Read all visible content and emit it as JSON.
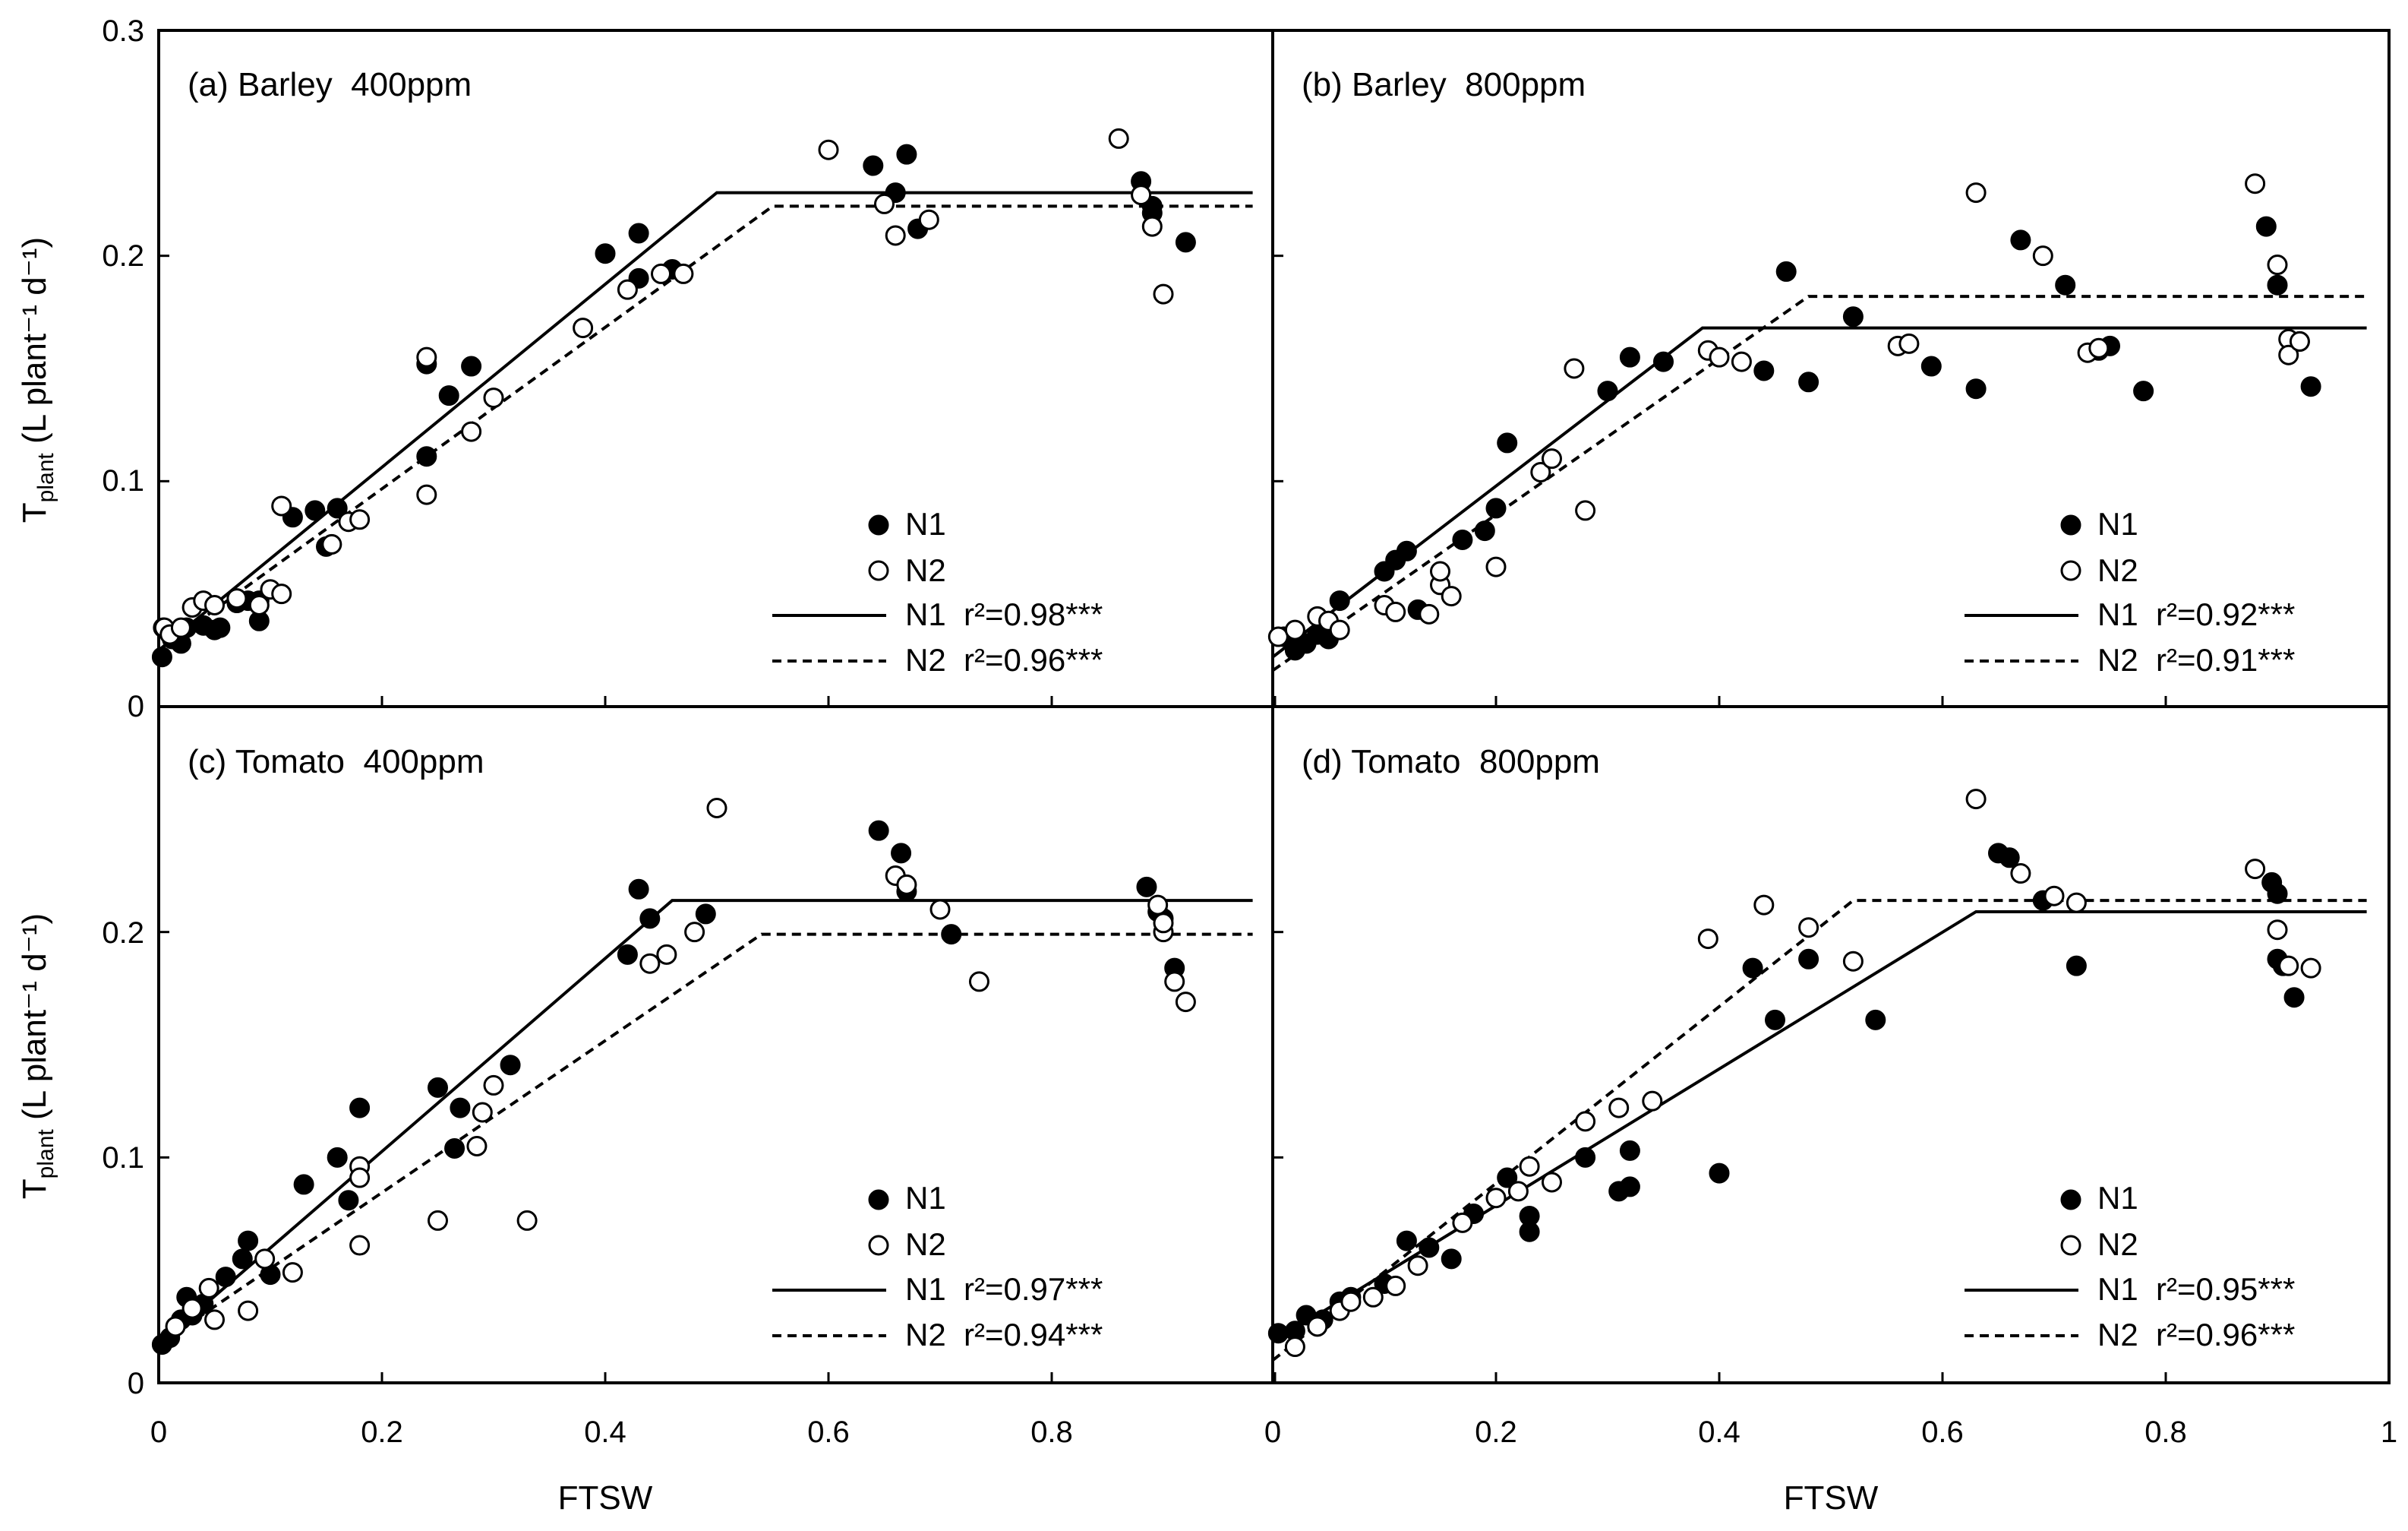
{
  "figure": {
    "xlabel": "FTSW",
    "ylabel_main": "T",
    "ylabel_sub": "plant",
    "ylabel_units": " (L plant⁻¹ d⁻¹)",
    "x_ticks_left": [
      "0",
      "0.2",
      "0.4",
      "0.6",
      "0.8"
    ],
    "x_ticks_right": [
      "0",
      "0.2",
      "0.4",
      "0.6",
      "0.8",
      "1"
    ],
    "y_ticks_top": [
      "0",
      "0.1",
      "0.2",
      "0.3"
    ],
    "y_ticks_bottom": [
      "0",
      "0.1",
      "0.2"
    ]
  },
  "chart_data": [
    {
      "type": "scatter",
      "title": "(a) Barley  400ppm",
      "xlabel": "",
      "ylabel": "Tplant (L plant-1 d-1)",
      "xlim": [
        0,
        1
      ],
      "ylim": [
        0,
        0.3
      ],
      "legend": "bottom-right",
      "series": [
        {
          "name": "N1",
          "marker": "filled",
          "x": [
            0.003,
            0.004,
            0.01,
            0.012,
            0.02,
            0.025,
            0.04,
            0.05,
            0.055,
            0.07,
            0.08,
            0.09,
            0.09,
            0.12,
            0.14,
            0.15,
            0.16,
            0.24,
            0.24,
            0.26,
            0.28,
            0.4,
            0.43,
            0.43,
            0.46,
            0.64,
            0.66,
            0.67,
            0.68,
            0.88,
            0.89,
            0.89,
            0.92
          ],
          "y": [
            0.022,
            0.035,
            0.033,
            0.03,
            0.028,
            0.035,
            0.036,
            0.034,
            0.035,
            0.046,
            0.047,
            0.047,
            0.038,
            0.084,
            0.087,
            0.071,
            0.088,
            0.152,
            0.111,
            0.138,
            0.151,
            0.201,
            0.19,
            0.21,
            0.194,
            0.24,
            0.228,
            0.245,
            0.212,
            0.233,
            0.222,
            0.219,
            0.206
          ]
        },
        {
          "name": "N2",
          "marker": "open",
          "x": [
            0.005,
            0.01,
            0.02,
            0.03,
            0.04,
            0.05,
            0.07,
            0.09,
            0.1,
            0.11,
            0.11,
            0.155,
            0.17,
            0.18,
            0.24,
            0.24,
            0.28,
            0.3,
            0.38,
            0.42,
            0.45,
            0.47,
            0.6,
            0.65,
            0.66,
            0.69,
            0.86,
            0.88,
            0.89,
            0.9
          ],
          "y": [
            0.035,
            0.032,
            0.035,
            0.044,
            0.047,
            0.045,
            0.048,
            0.045,
            0.052,
            0.089,
            0.05,
            0.072,
            0.082,
            0.083,
            0.155,
            0.094,
            0.122,
            0.137,
            0.168,
            0.185,
            0.192,
            0.192,
            0.247,
            0.223,
            0.209,
            0.216,
            0.252,
            0.227,
            0.213,
            0.183
          ]
        },
        {
          "name": "N1  r²=0.98***",
          "type": "line",
          "style": "solid",
          "x": [
            0,
            0.5,
            0.98
          ],
          "y": [
            0.025,
            0.228,
            0.228
          ]
        },
        {
          "name": "N2  r²=0.96***",
          "type": "line",
          "style": "dashed",
          "x": [
            0,
            0.55,
            0.98
          ],
          "y": [
            0.025,
            0.222,
            0.222
          ]
        }
      ]
    },
    {
      "type": "scatter",
      "title": "(b) Barley  800ppm",
      "xlabel": "",
      "ylabel": "",
      "xlim": [
        0,
        1
      ],
      "ylim": [
        0,
        0.3
      ],
      "legend": "bottom-right",
      "series": [
        {
          "name": "N1",
          "marker": "filled",
          "x": [
            0.01,
            0.02,
            0.03,
            0.04,
            0.05,
            0.06,
            0.1,
            0.11,
            0.12,
            0.13,
            0.17,
            0.19,
            0.2,
            0.21,
            0.3,
            0.32,
            0.35,
            0.44,
            0.46,
            0.48,
            0.52,
            0.59,
            0.63,
            0.67,
            0.71,
            0.74,
            0.75,
            0.78,
            0.89,
            0.9,
            0.92,
            0.93
          ],
          "y": [
            0.031,
            0.025,
            0.028,
            0.032,
            0.03,
            0.047,
            0.06,
            0.065,
            0.069,
            0.043,
            0.074,
            0.078,
            0.088,
            0.117,
            0.14,
            0.155,
            0.153,
            0.149,
            0.193,
            0.144,
            0.173,
            0.151,
            0.141,
            0.207,
            0.187,
            0.158,
            0.16,
            0.14,
            0.213,
            0.187,
            0.162,
            0.142
          ]
        },
        {
          "name": "N2",
          "marker": "open",
          "x": [
            0.005,
            0.02,
            0.04,
            0.05,
            0.06,
            0.1,
            0.11,
            0.14,
            0.15,
            0.15,
            0.16,
            0.2,
            0.24,
            0.25,
            0.27,
            0.28,
            0.39,
            0.4,
            0.42,
            0.56,
            0.57,
            0.63,
            0.69,
            0.73,
            0.74,
            0.88,
            0.9,
            0.91,
            0.91,
            0.92
          ],
          "y": [
            0.031,
            0.034,
            0.04,
            0.038,
            0.034,
            0.045,
            0.042,
            0.041,
            0.054,
            0.06,
            0.049,
            0.062,
            0.104,
            0.11,
            0.15,
            0.087,
            0.158,
            0.155,
            0.153,
            0.16,
            0.161,
            0.228,
            0.2,
            0.157,
            0.159,
            0.232,
            0.196,
            0.163,
            0.156,
            0.162
          ]
        },
        {
          "name": "N1  r²=0.92***",
          "type": "line",
          "style": "solid",
          "x": [
            0,
            0.385,
            0.98
          ],
          "y": [
            0.022,
            0.168,
            0.168
          ]
        },
        {
          "name": "N2  r²=0.91***",
          "type": "line",
          "style": "dashed",
          "x": [
            0,
            0.48,
            0.98
          ],
          "y": [
            0.016,
            0.182,
            0.182
          ]
        }
      ]
    },
    {
      "type": "scatter",
      "title": "(c) Tomato  400ppm",
      "xlabel": "FTSW",
      "ylabel": "Tplant (L plant-1 d-1)",
      "xlim": [
        0,
        1
      ],
      "ylim": [
        0,
        0.3
      ],
      "legend": "bottom-right",
      "series": [
        {
          "name": "N1",
          "marker": "filled",
          "x": [
            0.003,
            0.01,
            0.02,
            0.025,
            0.03,
            0.04,
            0.06,
            0.075,
            0.08,
            0.1,
            0.13,
            0.16,
            0.17,
            0.18,
            0.25,
            0.265,
            0.27,
            0.315,
            0.42,
            0.43,
            0.44,
            0.49,
            0.645,
            0.665,
            0.67,
            0.71,
            0.885,
            0.895,
            0.9,
            0.91
          ],
          "y": [
            0.017,
            0.02,
            0.028,
            0.038,
            0.03,
            0.035,
            0.047,
            0.055,
            0.063,
            0.048,
            0.088,
            0.1,
            0.081,
            0.122,
            0.131,
            0.104,
            0.122,
            0.141,
            0.19,
            0.219,
            0.206,
            0.208,
            0.245,
            0.235,
            0.218,
            0.199,
            0.22,
            0.209,
            0.206,
            0.184
          ]
        },
        {
          "name": "N2",
          "marker": "open",
          "x": [
            0.015,
            0.03,
            0.045,
            0.05,
            0.08,
            0.095,
            0.12,
            0.18,
            0.18,
            0.18,
            0.25,
            0.285,
            0.29,
            0.3,
            0.33,
            0.44,
            0.455,
            0.48,
            0.5,
            0.66,
            0.67,
            0.7,
            0.735,
            0.895,
            0.9,
            0.9,
            0.91,
            0.92
          ],
          "y": [
            0.025,
            0.033,
            0.042,
            0.028,
            0.032,
            0.055,
            0.049,
            0.096,
            0.091,
            0.061,
            0.072,
            0.105,
            0.12,
            0.132,
            0.072,
            0.186,
            0.19,
            0.2,
            0.255,
            0.225,
            0.221,
            0.21,
            0.178,
            0.212,
            0.2,
            0.204,
            0.178,
            0.169
          ]
        },
        {
          "name": "N1  r²=0.97***",
          "type": "line",
          "style": "solid",
          "x": [
            0,
            0.46,
            0.98
          ],
          "y": [
            0.017,
            0.214,
            0.214
          ]
        },
        {
          "name": "N2  r²=0.94***",
          "type": "line",
          "style": "dashed",
          "x": [
            0,
            0.54,
            0.98
          ],
          "y": [
            0.017,
            0.199,
            0.199
          ]
        }
      ]
    },
    {
      "type": "scatter",
      "title": "(d) Tomato  800ppm",
      "xlabel": "FTSW",
      "ylabel": "",
      "xlim": [
        0,
        1
      ],
      "ylim": [
        0,
        0.3
      ],
      "legend": "bottom-right",
      "series": [
        {
          "name": "N1",
          "marker": "filled",
          "x": [
            0.005,
            0.02,
            0.03,
            0.045,
            0.06,
            0.07,
            0.1,
            0.12,
            0.14,
            0.16,
            0.18,
            0.21,
            0.23,
            0.23,
            0.28,
            0.31,
            0.32,
            0.32,
            0.4,
            0.43,
            0.45,
            0.48,
            0.54,
            0.65,
            0.66,
            0.69,
            0.72,
            0.895,
            0.9,
            0.9,
            0.905,
            0.915
          ],
          "y": [
            0.022,
            0.023,
            0.03,
            0.028,
            0.036,
            0.038,
            0.044,
            0.063,
            0.06,
            0.055,
            0.075,
            0.091,
            0.067,
            0.074,
            0.1,
            0.085,
            0.087,
            0.103,
            0.093,
            0.184,
            0.161,
            0.188,
            0.161,
            0.235,
            0.233,
            0.214,
            0.185,
            0.222,
            0.217,
            0.188,
            0.185,
            0.171
          ]
        },
        {
          "name": "N2",
          "marker": "open",
          "x": [
            0.02,
            0.04,
            0.06,
            0.07,
            0.09,
            0.11,
            0.13,
            0.17,
            0.2,
            0.22,
            0.23,
            0.25,
            0.28,
            0.31,
            0.34,
            0.39,
            0.44,
            0.48,
            0.52,
            0.63,
            0.67,
            0.7,
            0.72,
            0.88,
            0.9,
            0.91,
            0.93
          ],
          "y": [
            0.016,
            0.025,
            0.032,
            0.036,
            0.038,
            0.043,
            0.052,
            0.071,
            0.082,
            0.085,
            0.096,
            0.089,
            0.116,
            0.122,
            0.125,
            0.197,
            0.212,
            0.202,
            0.187,
            0.259,
            0.226,
            0.216,
            0.213,
            0.228,
            0.201,
            0.185,
            0.184
          ]
        },
        {
          "name": "N1  r²=0.95***",
          "type": "line",
          "style": "solid",
          "x": [
            0,
            0.63,
            0.98
          ],
          "y": [
            0.018,
            0.209,
            0.209
          ]
        },
        {
          "name": "N2  r²=0.96***",
          "type": "line",
          "style": "dashed",
          "x": [
            0,
            0.52,
            0.98
          ],
          "y": [
            0.01,
            0.214,
            0.214
          ]
        }
      ]
    }
  ]
}
